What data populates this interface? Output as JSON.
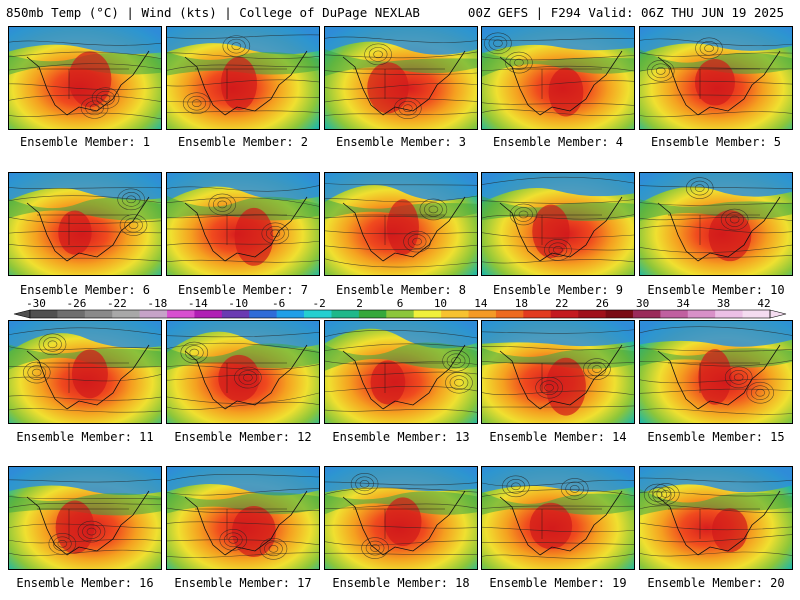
{
  "header": {
    "left": "850mb Temp (°C) | Wind (kts) | College of DuPage NEXLAB",
    "right": "00Z GEFS | F294 Valid: 06Z THU JUN 19 2025"
  },
  "panels": [
    {
      "caption": "Ensemble Member: 1"
    },
    {
      "caption": "Ensemble Member: 2"
    },
    {
      "caption": "Ensemble Member: 3"
    },
    {
      "caption": "Ensemble Member: 4"
    },
    {
      "caption": "Ensemble Member: 5"
    },
    {
      "caption": "Ensemble Member: 6"
    },
    {
      "caption": "Ensemble Member: 7"
    },
    {
      "caption": "Ensemble Member: 8"
    },
    {
      "caption": "Ensemble Member: 9"
    },
    {
      "caption": "Ensemble Member: 10"
    },
    {
      "caption": "Ensemble Member: 11"
    },
    {
      "caption": "Ensemble Member: 12"
    },
    {
      "caption": "Ensemble Member: 13"
    },
    {
      "caption": "Ensemble Member: 14"
    },
    {
      "caption": "Ensemble Member: 15"
    },
    {
      "caption": "Ensemble Member: 16"
    },
    {
      "caption": "Ensemble Member: 17"
    },
    {
      "caption": "Ensemble Member: 18"
    },
    {
      "caption": "Ensemble Member: 19"
    },
    {
      "caption": "Ensemble Member: 20"
    }
  ],
  "colorbar": {
    "labels": [
      "-30",
      "-26",
      "-22",
      "-18",
      "-14",
      "-10",
      "-6",
      "-2",
      "2",
      "6",
      "10",
      "14",
      "18",
      "22",
      "26",
      "30",
      "34",
      "38",
      "42"
    ],
    "colors": [
      "#505050",
      "#6e6e6e",
      "#8a8a8a",
      "#a8a8a8",
      "#c6a3c8",
      "#d84fd0",
      "#b01fb4",
      "#6a3bb2",
      "#2f6cd8",
      "#1f9fe8",
      "#25cfd0",
      "#1fb88a",
      "#35a83a",
      "#8cc63a",
      "#f0f03a",
      "#f7c230",
      "#f49a26",
      "#ee6a1e",
      "#e23a1e",
      "#c41a20",
      "#a0101a",
      "#7a0a14",
      "#9a2a5a",
      "#c060a0",
      "#d890c8",
      "#ecc0e6",
      "#f4dcf0"
    ]
  }
}
